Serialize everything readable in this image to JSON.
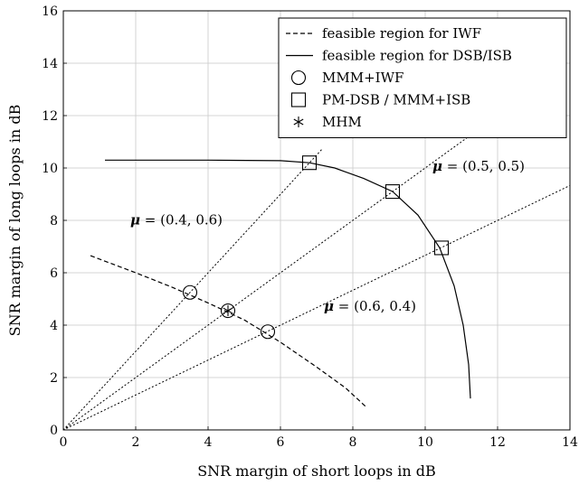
{
  "chart_data": {
    "type": "scatter",
    "xlabel": "SNR margin of short loops in dB",
    "ylabel": "SNR margin of long loops in dB",
    "xlim": [
      0,
      14
    ],
    "ylim": [
      0,
      16
    ],
    "xticks": [
      "0",
      "2",
      "4",
      "6",
      "8",
      "10",
      "12",
      "14"
    ],
    "yticks": [
      "0",
      "2",
      "4",
      "6",
      "8",
      "10",
      "12",
      "14",
      "16"
    ],
    "grid": true,
    "legend_position": "top-right",
    "series": [
      {
        "name": "feasible region for IWF",
        "kind": "line",
        "style": "dashed",
        "x": [
          0.75,
          2.0,
          3.0,
          4.0,
          5.0,
          6.0,
          7.0,
          7.8,
          8.35
        ],
        "y": [
          6.65,
          6.0,
          5.45,
          4.85,
          4.2,
          3.35,
          2.4,
          1.6,
          0.9
        ]
      },
      {
        "name": "feasible region for DSB/ISB",
        "kind": "line",
        "style": "solid",
        "x": [
          1.15,
          4.0,
          6.0,
          6.8,
          7.5,
          8.3,
          9.1,
          9.8,
          10.4,
          10.8,
          11.05,
          11.2,
          11.25
        ],
        "y": [
          10.3,
          10.3,
          10.28,
          10.2,
          10.0,
          9.6,
          9.1,
          8.2,
          6.95,
          5.5,
          4.0,
          2.5,
          1.2
        ]
      },
      {
        "name": "MMM+IWF",
        "kind": "marker",
        "marker": "circle",
        "x": [
          3.5,
          4.55,
          5.65
        ],
        "y": [
          5.25,
          4.55,
          3.75
        ]
      },
      {
        "name": "PM-DSB / MMM+ISB",
        "kind": "marker",
        "marker": "square",
        "x": [
          6.8,
          9.1,
          10.45
        ],
        "y": [
          10.2,
          9.1,
          6.95
        ]
      },
      {
        "name": "MHM",
        "kind": "marker",
        "marker": "asterisk",
        "x": [
          4.55
        ],
        "y": [
          4.55
        ]
      }
    ],
    "reference_lines": [
      {
        "kind": "line",
        "style": "dotted",
        "x": [
          0,
          7.15
        ],
        "y": [
          0,
          10.72
        ]
      },
      {
        "kind": "line",
        "style": "dotted",
        "x": [
          0,
          11.3
        ],
        "y": [
          0,
          11.3
        ]
      },
      {
        "kind": "line",
        "style": "dotted",
        "x": [
          0,
          14
        ],
        "y": [
          0,
          9.33
        ]
      }
    ],
    "annotations": [
      {
        "label": "μ",
        "value": " = (0.4, 0.6)",
        "x": 1.85,
        "y": 7.85
      },
      {
        "label": "μ",
        "value": " = (0.5, 0.5)",
        "x": 10.2,
        "y": 9.9
      },
      {
        "label": "μ",
        "value": " = (0.6, 0.4)",
        "x": 7.2,
        "y": 4.55
      }
    ]
  }
}
